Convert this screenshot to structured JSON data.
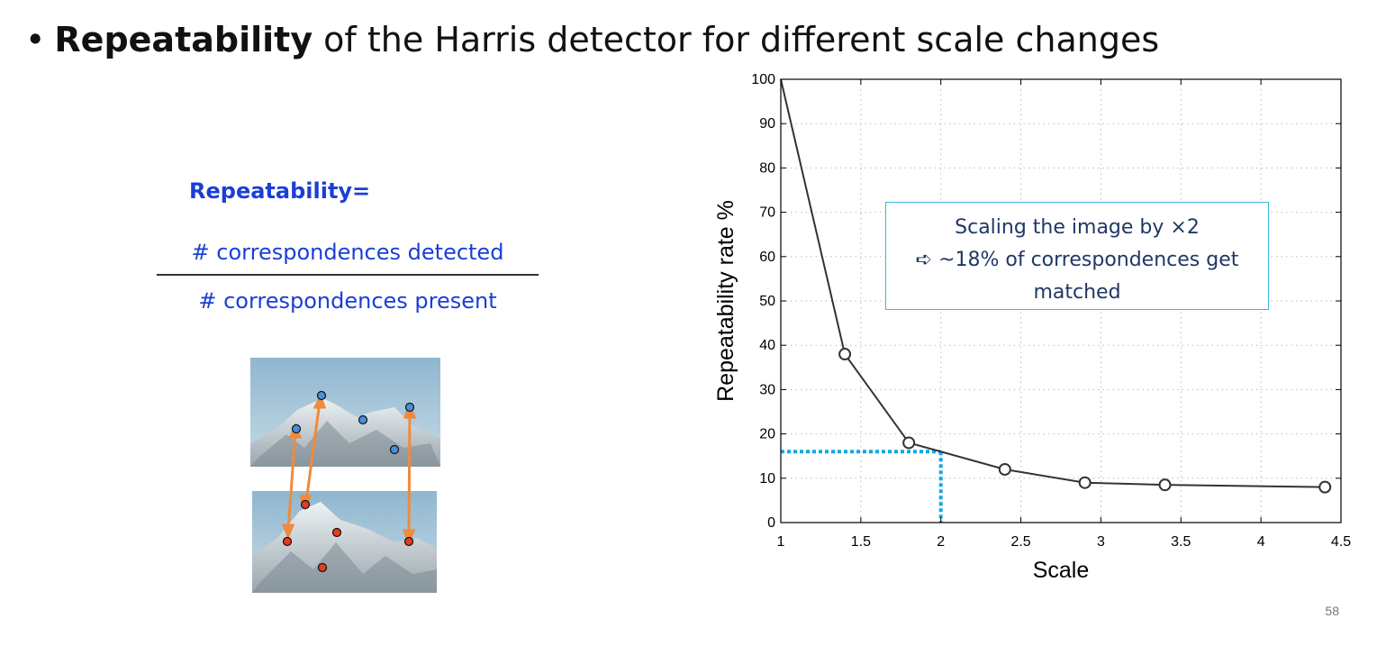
{
  "slide": {
    "bullet": "•",
    "title_bold": "Repeatability",
    "title_rest": " of the Harris detector for different scale changes",
    "page_number": "58"
  },
  "formula": {
    "label": "Repeatability=",
    "numerator": "# correspondences detected",
    "denominator": "# correspondences present"
  },
  "photo": {
    "description_icon": "mountain-correspondence-photos",
    "blue_point_color": "#4a90d9",
    "red_point_color": "#e63b1c",
    "arrow_color": "#f08a3c"
  },
  "annotation": {
    "line1": "Scaling the image by ×2",
    "line2": "➪ ~18% of correspondences get",
    "line3": "matched",
    "border_color": "#3ab8e0"
  },
  "chart_data": {
    "type": "line",
    "xlabel": "Scale",
    "ylabel": "Repeatability rate %",
    "xlim": [
      1,
      4.5
    ],
    "ylim": [
      0,
      100
    ],
    "xticks": [
      "1",
      "1.5",
      "2",
      "2.5",
      "3",
      "3.5",
      "4",
      "4.5"
    ],
    "yticks": [
      "0",
      "10",
      "20",
      "30",
      "40",
      "50",
      "60",
      "70",
      "80",
      "90",
      "100"
    ],
    "grid": true,
    "series": [
      {
        "x": [
          1,
          1.4,
          1.8,
          2.4,
          2.9,
          3.4,
          4.4
        ],
        "y": [
          100,
          38,
          18,
          12,
          9,
          8.5,
          8
        ],
        "markers": "circle",
        "line_color": "#333333"
      }
    ],
    "highlight": {
      "x": 2,
      "y": 16,
      "color": "#12a9e0"
    }
  }
}
